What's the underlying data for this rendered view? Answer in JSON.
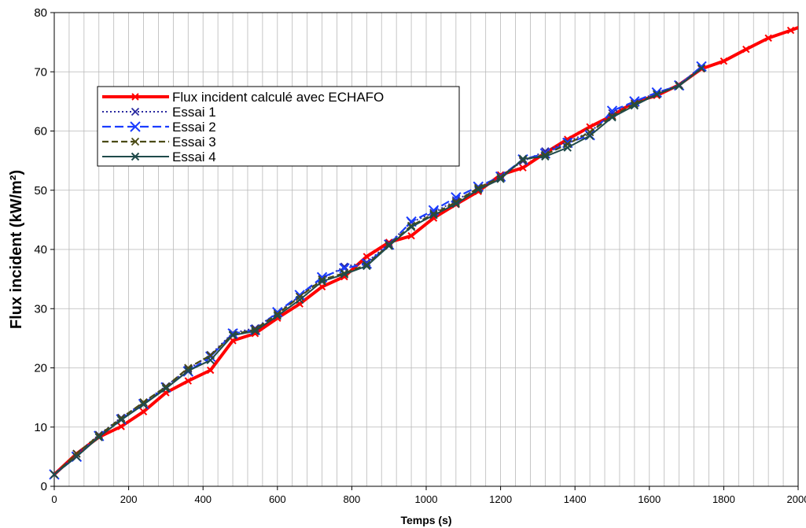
{
  "chart_data": {
    "type": "line",
    "title": "",
    "xlabel": "Temps (s)",
    "ylabel": "Flux incident (kW/m²)",
    "xlim": [
      0,
      2000
    ],
    "ylim": [
      0,
      80
    ],
    "x_ticks": [
      0,
      200,
      400,
      600,
      800,
      1000,
      1200,
      1400,
      1600,
      1800,
      2000
    ],
    "y_ticks": [
      0,
      10,
      20,
      30,
      40,
      50,
      60,
      70,
      80
    ],
    "x_tick_labels": [
      "0",
      "200",
      "400",
      "600",
      "800",
      "1000",
      "1200",
      "1400",
      "1600",
      "1800",
      "2000"
    ],
    "y_tick_labels": [
      "0",
      "10",
      "20",
      "30",
      "40",
      "50",
      "60",
      "70",
      "80"
    ],
    "grid": true,
    "minor_grid_step_x": 40,
    "legend_position": "top-left",
    "series": [
      {
        "name": "Flux incident calculé avec ECHAFO",
        "color": "#ff0000",
        "line_style": "solid",
        "marker": "x",
        "x": [
          0,
          60,
          120,
          180,
          240,
          300,
          360,
          420,
          480,
          540,
          600,
          660,
          720,
          780,
          840,
          900,
          960,
          1020,
          1080,
          1140,
          1200,
          1260,
          1320,
          1380,
          1440,
          1500,
          1560,
          1620,
          1680,
          1740,
          1800,
          1860,
          1920,
          1980,
          2040
        ],
        "y": [
          2,
          5.5,
          8.3,
          10.1,
          12.6,
          15.8,
          17.8,
          19.6,
          24.6,
          25.8,
          28.4,
          30.8,
          33.7,
          35.4,
          38.8,
          41.2,
          42.3,
          45.3,
          47.6,
          49.8,
          52.6,
          53.8,
          56.3,
          58.6,
          60.7,
          62.6,
          64.9,
          66,
          67.8,
          70.5,
          71.8,
          73.8,
          75.7,
          77,
          78.4
        ]
      },
      {
        "name": "Essai 1",
        "color": "#2a2aa0",
        "line_style": "dotted",
        "marker": "x",
        "x": [
          0,
          60,
          120,
          180,
          240,
          300,
          360,
          420,
          480,
          540,
          600,
          660,
          720,
          780,
          840,
          900,
          960,
          1020,
          1080,
          1140,
          1200,
          1260,
          1320,
          1380,
          1440,
          1500,
          1560,
          1620,
          1680,
          1740
        ],
        "y": [
          2,
          5.5,
          8.7,
          11.6,
          14.1,
          16.9,
          19.8,
          22.2,
          25.9,
          26.7,
          29.3,
          32.1,
          35,
          37.1,
          37.8,
          41,
          44.6,
          46.2,
          48.3,
          50.3,
          52.4,
          54.9,
          56.6,
          58.2,
          59.8,
          63,
          65,
          66.4,
          67.8,
          70.9
        ]
      },
      {
        "name": "Essai 2",
        "color": "#1a3cff",
        "line_style": "dashed",
        "marker": "x",
        "x": [
          0,
          60,
          120,
          180,
          240,
          300,
          360,
          420,
          480,
          540,
          600,
          660,
          720,
          780,
          840,
          900,
          960,
          1020,
          1080,
          1140,
          1200,
          1260,
          1320,
          1380,
          1440,
          1500,
          1560,
          1620,
          1680,
          1740
        ],
        "y": [
          2,
          5,
          8.5,
          11.3,
          13.9,
          16.7,
          19.4,
          21.9,
          25.8,
          26.4,
          29.4,
          32.3,
          35.3,
          36.8,
          37.6,
          40.8,
          44.7,
          46.6,
          48.8,
          50.6,
          52.3,
          55.2,
          56.2,
          58,
          59.3,
          63.4,
          65,
          66.5,
          67.7,
          70.9
        ]
      },
      {
        "name": "Essai 3",
        "color": "#4a4a14",
        "line_style": "dashed",
        "marker": "x",
        "x": [
          0,
          60,
          120,
          180,
          240,
          300,
          360,
          420,
          480,
          540,
          600,
          660,
          720,
          780,
          840,
          900,
          960,
          1020,
          1080,
          1140,
          1200,
          1260,
          1320,
          1380,
          1440,
          1500,
          1560,
          1620,
          1680,
          1740
        ],
        "y": [
          2,
          5.5,
          8.6,
          11.5,
          14.2,
          16.8,
          20,
          22.1,
          25.6,
          26.5,
          29.1,
          32,
          34.9,
          36,
          37.4,
          40.8,
          44,
          46,
          48,
          50.4,
          52.2,
          55.1,
          56,
          57.8,
          59.8,
          62.5,
          64.6,
          66.2,
          67.7,
          70.6
        ]
      },
      {
        "name": "Essai 4",
        "color": "#1f4a4a",
        "line_style": "solid",
        "marker": "x",
        "x": [
          0,
          60,
          120,
          180,
          240,
          300,
          360,
          420,
          480,
          540,
          600,
          660,
          720,
          780,
          840,
          900,
          960,
          1020,
          1080,
          1140,
          1200,
          1260,
          1320,
          1380,
          1440,
          1500,
          1560,
          1620,
          1680,
          1740
        ],
        "y": [
          2,
          5,
          8.3,
          11.2,
          13.8,
          16.5,
          19.5,
          21.3,
          25.5,
          26.2,
          28.8,
          31.5,
          34.6,
          35.8,
          37.2,
          40.6,
          43.8,
          45.8,
          47.7,
          50.1,
          51.9,
          55.3,
          55.7,
          57.2,
          59.2,
          62.3,
          64.3,
          66.2,
          67.6,
          70.6
        ]
      }
    ]
  }
}
